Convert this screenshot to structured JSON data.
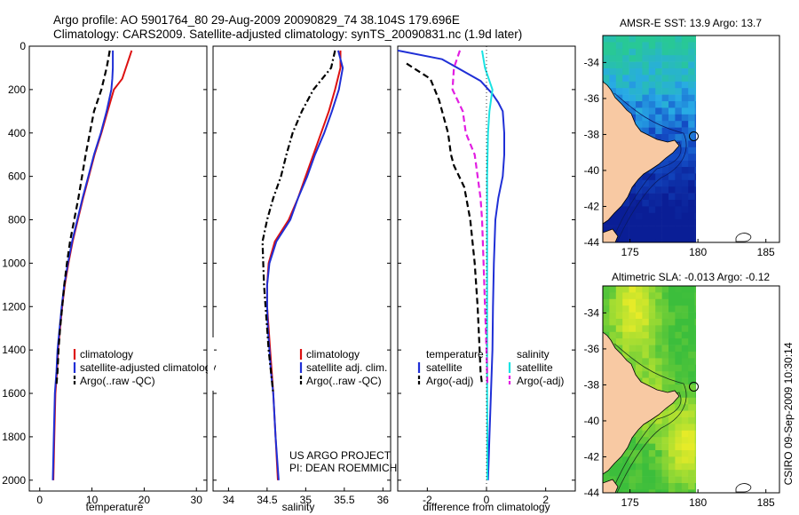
{
  "header": {
    "line1": "Argo profile: AO 5901764_80 29-Aug-2009 20090829_74 38.104S 179.696E",
    "line2": "Climatology: CARS2009. Satellite-adjusted climatology: synTS_20090831.nc (1.9d later)"
  },
  "side_label": "CSIRO 09-Sep-2009 10:30:14",
  "project_line1": "US ARGO PROJECT",
  "project_line2": "PI: DEAN ROEMMICH",
  "colors": {
    "red": "#dd1111",
    "blue": "#1f2fd6",
    "black": "#000000",
    "magenta": "#e21ee2",
    "cyan": "#19e3e3"
  },
  "chart_data": [
    {
      "type": "line",
      "panel": "temperature",
      "xlabel": "temperature",
      "ylabel": "",
      "xlim": [
        -2,
        32
      ],
      "ylim": [
        2050,
        0
      ],
      "xticks": [
        0,
        10,
        20,
        30
      ],
      "yticks": [
        0,
        200,
        400,
        600,
        800,
        1000,
        1200,
        1400,
        1600,
        1800,
        2000
      ],
      "legend": [
        "climatology",
        "satellite-adjusted climatology",
        "Argo(..raw -QC)"
      ],
      "series": [
        {
          "name": "climatology",
          "color": "red",
          "dash": "solid",
          "points": [
            [
              17.6,
              20
            ],
            [
              17.2,
              50
            ],
            [
              15.8,
              150
            ],
            [
              14.2,
              200
            ],
            [
              13,
              300
            ],
            [
              11.8,
              400
            ],
            [
              10.5,
              500
            ],
            [
              9.4,
              600
            ],
            [
              8.3,
              700
            ],
            [
              7.3,
              800
            ],
            [
              6.3,
              900
            ],
            [
              5.5,
              1000
            ],
            [
              4.8,
              1100
            ],
            [
              4.3,
              1200
            ],
            [
              3.9,
              1300
            ],
            [
              3.5,
              1400
            ],
            [
              3.3,
              1500
            ],
            [
              3,
              1600
            ],
            [
              2.8,
              1800
            ],
            [
              2.6,
              2000
            ]
          ]
        },
        {
          "name": "satellite-adjusted climatology",
          "color": "blue",
          "dash": "solid",
          "points": [
            [
              14,
              20
            ],
            [
              14,
              50
            ],
            [
              14,
              100
            ],
            [
              13.9,
              150
            ],
            [
              13.7,
              200
            ],
            [
              12.8,
              300
            ],
            [
              11.7,
              400
            ],
            [
              10.4,
              500
            ],
            [
              9.3,
              600
            ],
            [
              8.2,
              700
            ],
            [
              7.2,
              800
            ],
            [
              6.2,
              900
            ],
            [
              5.4,
              1000
            ],
            [
              4.7,
              1100
            ],
            [
              4.2,
              1200
            ],
            [
              3.8,
              1300
            ],
            [
              3.4,
              1400
            ],
            [
              3.2,
              1500
            ],
            [
              2.9,
              1600
            ],
            [
              2.7,
              1800
            ],
            [
              2.5,
              2000
            ]
          ]
        },
        {
          "name": "Argo(..raw -QC)",
          "color": "black",
          "dash": "dash",
          "points": [
            [
              13.4,
              20
            ],
            [
              13.2,
              50
            ],
            [
              12.8,
              100
            ],
            [
              11.8,
              200
            ],
            [
              10.4,
              300
            ],
            [
              9.6,
              400
            ],
            [
              8.8,
              500
            ],
            [
              8.1,
              600
            ],
            [
              7.4,
              700
            ],
            [
              6.6,
              800
            ],
            [
              5.8,
              900
            ],
            [
              5.2,
              1000
            ],
            [
              4.7,
              1100
            ],
            [
              4.3,
              1200
            ],
            [
              3.9,
              1300
            ],
            [
              3.6,
              1400
            ],
            [
              3.4,
              1500
            ],
            [
              3.2,
              1560
            ]
          ]
        }
      ]
    },
    {
      "type": "line",
      "panel": "salinity",
      "xlabel": "salinity",
      "ylabel": "",
      "xlim": [
        33.8,
        36.1
      ],
      "ylim": [
        2050,
        0
      ],
      "xticks": [
        34,
        34.5,
        35,
        35.5,
        36
      ],
      "legend": [
        "climatology",
        "satellite adj. clim.",
        "Argo(..raw -QC)"
      ],
      "series": [
        {
          "name": "climatology",
          "color": "red",
          "dash": "solid",
          "points": [
            [
              35.45,
              20
            ],
            [
              35.45,
              100
            ],
            [
              35.38,
              200
            ],
            [
              35.3,
              300
            ],
            [
              35.2,
              400
            ],
            [
              35.1,
              500
            ],
            [
              35.0,
              600
            ],
            [
              34.9,
              700
            ],
            [
              34.78,
              800
            ],
            [
              34.6,
              900
            ],
            [
              34.52,
              1000
            ],
            [
              34.5,
              1100
            ],
            [
              34.5,
              1200
            ],
            [
              34.52,
              1300
            ],
            [
              34.54,
              1400
            ],
            [
              34.56,
              1500
            ],
            [
              34.58,
              1600
            ],
            [
              34.61,
              1800
            ],
            [
              34.64,
              2000
            ]
          ]
        },
        {
          "name": "satellite adj. clim.",
          "color": "blue",
          "dash": "solid",
          "points": [
            [
              35.42,
              20
            ],
            [
              35.48,
              100
            ],
            [
              35.43,
              200
            ],
            [
              35.34,
              300
            ],
            [
              35.24,
              400
            ],
            [
              35.12,
              500
            ],
            [
              35.02,
              600
            ],
            [
              34.9,
              700
            ],
            [
              34.8,
              800
            ],
            [
              34.62,
              900
            ],
            [
              34.53,
              1000
            ],
            [
              34.5,
              1100
            ],
            [
              34.5,
              1200
            ],
            [
              34.51,
              1300
            ],
            [
              34.53,
              1400
            ],
            [
              34.55,
              1500
            ],
            [
              34.58,
              1600
            ],
            [
              34.61,
              1800
            ],
            [
              34.65,
              2000
            ]
          ]
        },
        {
          "name": "Argo(..raw -QC)",
          "color": "black",
          "dash": "dashdot",
          "points": [
            [
              35.38,
              20
            ],
            [
              35.33,
              100
            ],
            [
              35.1,
              200
            ],
            [
              34.95,
              300
            ],
            [
              34.83,
              400
            ],
            [
              34.75,
              500
            ],
            [
              34.68,
              600
            ],
            [
              34.58,
              700
            ],
            [
              34.5,
              800
            ],
            [
              34.44,
              900
            ],
            [
              34.45,
              1000
            ],
            [
              34.46,
              1100
            ],
            [
              34.48,
              1200
            ],
            [
              34.5,
              1300
            ],
            [
              34.52,
              1400
            ],
            [
              34.55,
              1500
            ],
            [
              34.58,
              1600
            ]
          ]
        }
      ]
    },
    {
      "type": "line",
      "panel": "difference",
      "xlabel": "difference from climatology",
      "ylabel": "",
      "xlim": [
        -3,
        3
      ],
      "ylim": [
        2050,
        0
      ],
      "xticks": [
        -2,
        0,
        2
      ],
      "legend_left": {
        "title": "temperature",
        "items": [
          "satellite",
          "Argo(-adj)"
        ]
      },
      "legend_right": {
        "title": "salinity",
        "items": [
          "satellite",
          "Argo(-adj)"
        ]
      },
      "series": [
        {
          "name": "temperature satellite",
          "color": "blue",
          "dash": "solid",
          "points": [
            [
              -3,
              20
            ],
            [
              -1.5,
              60
            ],
            [
              -0.2,
              160
            ],
            [
              0.2,
              220
            ],
            [
              0.4,
              260
            ],
            [
              0.55,
              300
            ],
            [
              0.6,
              400
            ],
            [
              0.6,
              500
            ],
            [
              0.55,
              600
            ],
            [
              0.4,
              700
            ],
            [
              0.3,
              800
            ],
            [
              0.25,
              1000
            ],
            [
              0.22,
              1200
            ],
            [
              0.2,
              1400
            ],
            [
              0.15,
              1600
            ],
            [
              0.1,
              1800
            ],
            [
              0.05,
              2000
            ]
          ]
        },
        {
          "name": "temperature Argo(-adj)",
          "color": "black",
          "dash": "dash",
          "points": [
            [
              -2.7,
              80
            ],
            [
              -1.9,
              150
            ],
            [
              -1.6,
              250
            ],
            [
              -1.5,
              300
            ],
            [
              -1.3,
              400
            ],
            [
              -1.2,
              500
            ],
            [
              -1.1,
              550
            ],
            [
              -0.75,
              650
            ],
            [
              -0.55,
              800
            ],
            [
              -0.4,
              1000
            ],
            [
              -0.3,
              1200
            ],
            [
              -0.25,
              1350
            ],
            [
              -0.2,
              1500
            ],
            [
              -0.15,
              1560
            ]
          ]
        },
        {
          "name": "salinity satellite",
          "color": "cyan",
          "dash": "solid",
          "points": [
            [
              -0.15,
              20
            ],
            [
              -0.05,
              100
            ],
            [
              0.2,
              200
            ],
            [
              0.1,
              300
            ],
            [
              0.05,
              400
            ],
            [
              0.02,
              600
            ],
            [
              0.02,
              800
            ],
            [
              0.02,
              1000
            ],
            [
              0.02,
              1200
            ],
            [
              0.02,
              1400
            ],
            [
              0.02,
              1600
            ],
            [
              0.03,
              1800
            ],
            [
              0.03,
              2000
            ]
          ]
        },
        {
          "name": "salinity Argo(-adj)",
          "color": "magenta",
          "dash": "dash",
          "points": [
            [
              -0.9,
              20
            ],
            [
              -1.1,
              100
            ],
            [
              -1.15,
              200
            ],
            [
              -0.8,
              300
            ],
            [
              -0.7,
              400
            ],
            [
              -0.4,
              500
            ],
            [
              -0.3,
              600
            ],
            [
              -0.2,
              700
            ],
            [
              -0.15,
              800
            ],
            [
              -0.1,
              1000
            ],
            [
              -0.05,
              1200
            ],
            [
              0,
              1400
            ],
            [
              0.03,
              1560
            ]
          ]
        }
      ]
    },
    {
      "type": "heatmap",
      "panel": "sst_map",
      "title": "AMSR-E SST: 13.9 Argo: 13.7",
      "xlim": [
        173,
        186
      ],
      "ylim": [
        -44,
        -32.5
      ],
      "xticks": [
        175,
        180,
        185
      ],
      "yticks": [
        -34,
        -36,
        -38,
        -40,
        -42,
        -44
      ],
      "argo_position": [
        179.696,
        -38.104
      ],
      "colormap": "blue-cyan-green"
    },
    {
      "type": "heatmap",
      "panel": "sla_map",
      "title": "Altimetric SLA: -0.013 Argo: -0.12",
      "xlim": [
        173,
        186
      ],
      "ylim": [
        -44,
        -32.5
      ],
      "xticks": [
        175,
        180,
        185
      ],
      "yticks": [
        -34,
        -36,
        -38,
        -40,
        -42,
        -44
      ],
      "argo_position": [
        179.696,
        -38.104
      ],
      "colormap": "green-yellow"
    }
  ]
}
